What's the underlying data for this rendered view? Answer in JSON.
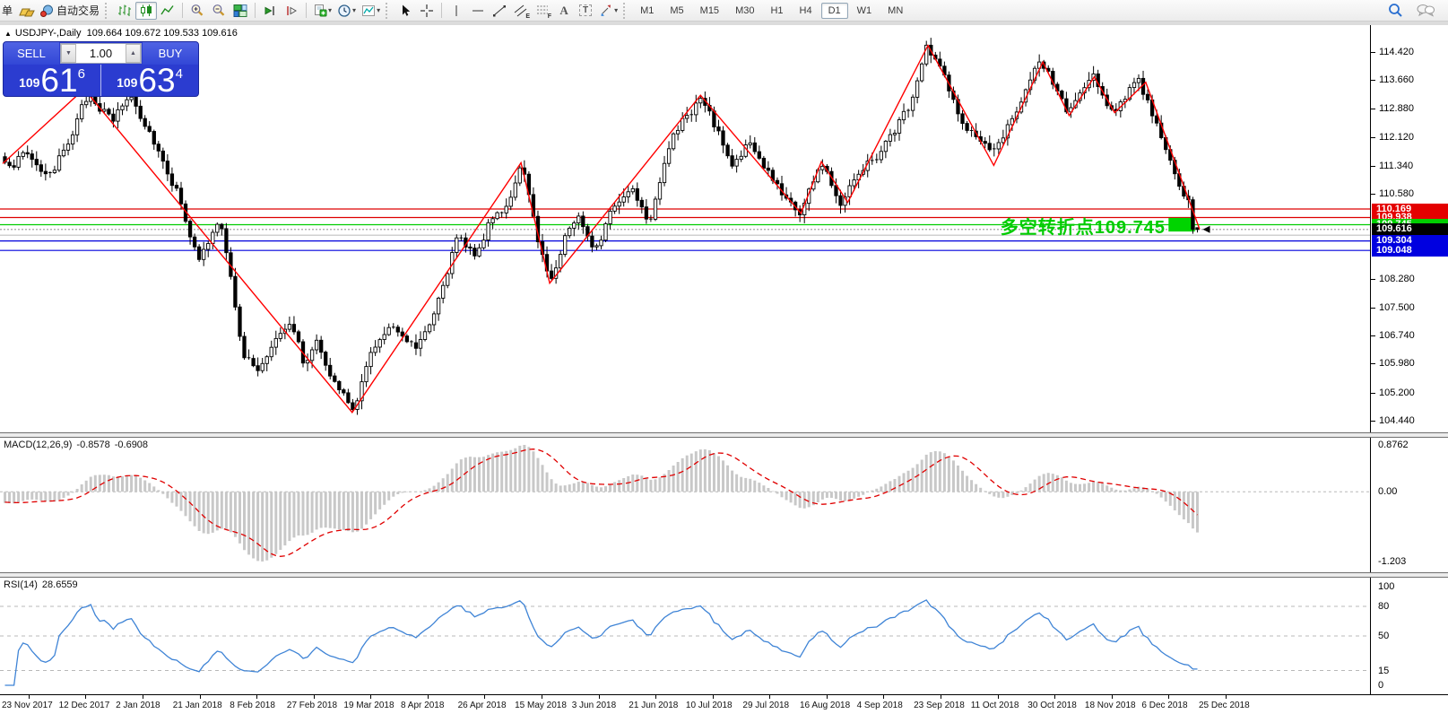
{
  "toolbar": {
    "left_partial_label": "单",
    "autotrade_label": "自动交易",
    "icon_letters": {
      "channel": "E",
      "fibo": "F",
      "text": "A",
      "label": "T"
    },
    "timeframes": [
      "M1",
      "M5",
      "M15",
      "M30",
      "H1",
      "H4",
      "D1",
      "W1",
      "MN"
    ],
    "active_timeframe": "D1"
  },
  "chart": {
    "collapse_arrow": "▲",
    "symbol_period": "USDJPY-,Daily",
    "ohlc_text": "109.664 109.672 109.533 109.616",
    "trade_panel": {
      "sell_label": "SELL",
      "buy_label": "BUY",
      "volume": "1.00",
      "sell_price_prefix": "109",
      "sell_price_big": "61",
      "sell_price_sup": "6",
      "buy_price_prefix": "109",
      "buy_price_big": "63",
      "buy_price_sup": "4"
    },
    "annotation": {
      "text": "多空转折点109.745",
      "color": "#00cc00"
    }
  },
  "macd_panel": {
    "label": "MACD(12,26,9)",
    "value_main": "-0.8578",
    "value_signal": "-0.6908",
    "axis_labels": [
      "0.8762",
      "0.00",
      "-1.203"
    ]
  },
  "rsi_panel": {
    "label": "RSI(14)",
    "value": "28.6559",
    "axis_labels": [
      "100",
      "80",
      "50",
      "15",
      "0"
    ]
  },
  "date_axis": [
    "23 Nov 2017",
    "12 Dec 2017",
    "2 Jan 2018",
    "21 Jan 2018",
    "8 Feb 2018",
    "27 Feb 2018",
    "19 Mar 2018",
    "8 Apr 2018",
    "26 Apr 2018",
    "15 May 2018",
    "3 Jun 2018",
    "21 Jun 2018",
    "10 Jul 2018",
    "29 Jul 2018",
    "16 Aug 2018",
    "4 Sep 2018",
    "23 Sep 2018",
    "11 Oct 2018",
    "30 Oct 2018",
    "18 Nov 2018",
    "6 Dec 2018",
    "25 Dec 2018"
  ],
  "chart_data": {
    "type": "candlestick",
    "symbol": "USDJPY-",
    "timeframe": "Daily",
    "bid": 109.616,
    "ask": 109.634,
    "last_candle": {
      "open": 109.664,
      "high": 109.672,
      "low": 109.533,
      "close": 109.616
    },
    "visible_price_range": [
      104.12,
      115.15
    ],
    "price_axis_ticks": [
      114.42,
      113.66,
      112.88,
      112.12,
      111.34,
      110.58,
      108.28,
      107.5,
      106.74,
      105.98,
      105.2,
      104.44
    ],
    "price_levels": [
      {
        "price": 110.169,
        "color": "#dd0000",
        "style": "solid",
        "chip_bg": "#e40000",
        "chip_text": "110.169"
      },
      {
        "price": 109.938,
        "color": "#dd0000",
        "style": "solid",
        "chip_bg": "#e40000",
        "chip_text": "109.938"
      },
      {
        "price": 109.745,
        "color": "#00cc00",
        "style": "solid",
        "chip_bg": "#00ce00",
        "chip_text": "109.745"
      },
      {
        "price": 109.46,
        "color": "#c0c0c0",
        "style": "solid"
      },
      {
        "price": 109.616,
        "color": "#999999",
        "style": "dot",
        "chip_bg": "#000000",
        "chip_text": "109.616"
      },
      {
        "price": 109.304,
        "color": "#0000dd",
        "style": "solid",
        "chip_bg": "#0000e0",
        "chip_text": "109.304"
      },
      {
        "price": 109.048,
        "color": "#0000dd",
        "style": "solid",
        "chip_bg": "#0000e0",
        "chip_text": "109.048"
      }
    ],
    "zigzag_points": [
      [
        0,
        111.4
      ],
      [
        0.068,
        113.42
      ],
      [
        0.292,
        104.66
      ],
      [
        0.433,
        111.42
      ],
      [
        0.457,
        108.16
      ],
      [
        0.583,
        113.25
      ],
      [
        0.667,
        110.05
      ],
      [
        0.684,
        111.45
      ],
      [
        0.706,
        110.35
      ],
      [
        0.773,
        114.6
      ],
      [
        0.828,
        111.35
      ],
      [
        0.869,
        114.15
      ],
      [
        0.891,
        112.7
      ],
      [
        0.912,
        113.75
      ],
      [
        0.929,
        112.78
      ],
      [
        0.955,
        113.6
      ],
      [
        1,
        109.62
      ]
    ],
    "price_path": [
      [
        0.0,
        111.3
      ],
      [
        0.018,
        111.7
      ],
      [
        0.04,
        110.95
      ],
      [
        0.055,
        112.2
      ],
      [
        0.072,
        113.35
      ],
      [
        0.09,
        112.5
      ],
      [
        0.105,
        113.3
      ],
      [
        0.125,
        112.1
      ],
      [
        0.148,
        110.4
      ],
      [
        0.163,
        108.7
      ],
      [
        0.18,
        109.9
      ],
      [
        0.2,
        106.3
      ],
      [
        0.213,
        105.7
      ],
      [
        0.228,
        106.8
      ],
      [
        0.24,
        107.3
      ],
      [
        0.252,
        105.9
      ],
      [
        0.262,
        106.7
      ],
      [
        0.278,
        105.4
      ],
      [
        0.292,
        104.68
      ],
      [
        0.31,
        106.5
      ],
      [
        0.328,
        107.0
      ],
      [
        0.345,
        106.5
      ],
      [
        0.36,
        107.5
      ],
      [
        0.378,
        109.3
      ],
      [
        0.395,
        109.0
      ],
      [
        0.408,
        109.9
      ],
      [
        0.42,
        110.3
      ],
      [
        0.433,
        111.3
      ],
      [
        0.445,
        109.6
      ],
      [
        0.457,
        108.2
      ],
      [
        0.47,
        109.5
      ],
      [
        0.48,
        110.0
      ],
      [
        0.495,
        109.2
      ],
      [
        0.512,
        110.3
      ],
      [
        0.527,
        110.8
      ],
      [
        0.54,
        109.9
      ],
      [
        0.556,
        111.9
      ],
      [
        0.57,
        112.6
      ],
      [
        0.583,
        113.15
      ],
      [
        0.597,
        112.3
      ],
      [
        0.61,
        111.3
      ],
      [
        0.623,
        112.0
      ],
      [
        0.638,
        111.2
      ],
      [
        0.652,
        110.6
      ],
      [
        0.667,
        110.1
      ],
      [
        0.684,
        111.45
      ],
      [
        0.7,
        110.4
      ],
      [
        0.715,
        111.3
      ],
      [
        0.73,
        111.6
      ],
      [
        0.748,
        112.4
      ],
      [
        0.762,
        113.2
      ],
      [
        0.773,
        114.5
      ],
      [
        0.79,
        113.6
      ],
      [
        0.805,
        112.3
      ],
      [
        0.82,
        112.0
      ],
      [
        0.828,
        111.45
      ],
      [
        0.845,
        112.8
      ],
      [
        0.857,
        113.4
      ],
      [
        0.869,
        114.1
      ],
      [
        0.88,
        113.5
      ],
      [
        0.891,
        112.75
      ],
      [
        0.903,
        113.3
      ],
      [
        0.912,
        113.7
      ],
      [
        0.921,
        113.3
      ],
      [
        0.929,
        112.8
      ],
      [
        0.94,
        113.3
      ],
      [
        0.95,
        113.55
      ],
      [
        0.962,
        112.8
      ],
      [
        0.972,
        111.8
      ],
      [
        0.982,
        110.9
      ],
      [
        0.992,
        110.45
      ],
      [
        1.0,
        109.62
      ]
    ],
    "bars_visible": 265,
    "highlight_rect": {
      "x_frac_start": 0.974,
      "x_frac_end": 0.996,
      "price_top": 109.93,
      "price_bottom": 109.56,
      "color": "#00d400"
    },
    "macd": {
      "fast": 12,
      "slow": 26,
      "signal": 9,
      "current": -0.8578,
      "current_signal": -0.6908,
      "scale_max": 0.8762,
      "scale_min": -1.203,
      "histogram_color": "#c8c8c8",
      "signal_color": "#e00000"
    },
    "rsi": {
      "period": 14,
      "current": 28.6559,
      "levels": [
        80,
        50,
        15
      ],
      "line_color": "#3f84d6",
      "range": [
        0,
        100
      ]
    }
  },
  "colors": {
    "bull_body": "#ffffff",
    "bear_body": "#000000",
    "candle_outline": "#000000",
    "zigzag": "#ff0000",
    "panel_blue": "#2b3cd0"
  }
}
